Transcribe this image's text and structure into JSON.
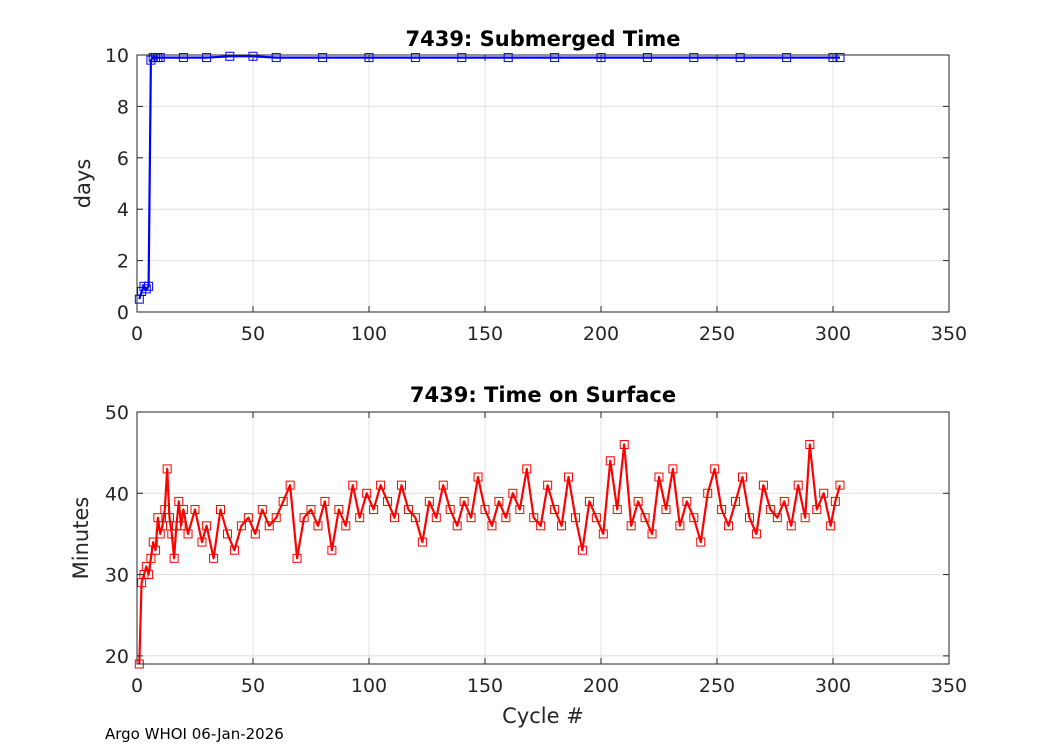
{
  "chart_data": [
    {
      "type": "line",
      "title": "7439: Submerged Time",
      "xlabel": "",
      "ylabel": "days",
      "xlim": [
        0,
        350
      ],
      "ylim": [
        0,
        10
      ],
      "xticks": [
        0,
        50,
        100,
        150,
        200,
        250,
        300,
        350
      ],
      "yticks": [
        0,
        2,
        4,
        6,
        8,
        10
      ],
      "grid": true,
      "color": "#0000ff",
      "marker": "square",
      "series": [
        {
          "name": "Submerged Time",
          "x": [
            1,
            2,
            3,
            4,
            5,
            6,
            7,
            8,
            9,
            10,
            20,
            30,
            40,
            50,
            60,
            80,
            100,
            120,
            140,
            160,
            180,
            200,
            220,
            240,
            260,
            280,
            300,
            303
          ],
          "y": [
            0.5,
            0.8,
            1.0,
            0.9,
            1.0,
            9.8,
            9.9,
            9.9,
            9.9,
            9.9,
            9.9,
            9.9,
            9.95,
            9.95,
            9.9,
            9.9,
            9.9,
            9.9,
            9.9,
            9.9,
            9.9,
            9.9,
            9.9,
            9.9,
            9.9,
            9.9,
            9.9,
            9.9
          ]
        }
      ]
    },
    {
      "type": "line",
      "title": "7439: Time on Surface",
      "xlabel": "Cycle #",
      "ylabel": "Minutes",
      "xlim": [
        0,
        350
      ],
      "ylim": [
        19,
        50
      ],
      "xticks": [
        0,
        50,
        100,
        150,
        200,
        250,
        300,
        350
      ],
      "yticks": [
        20,
        30,
        40,
        50
      ],
      "grid": true,
      "color": "#ff0000",
      "marker": "square",
      "series": [
        {
          "name": "Time on Surface",
          "x": [
            1,
            2,
            3,
            4,
            5,
            6,
            7,
            8,
            9,
            10,
            11,
            12,
            13,
            14,
            15,
            16,
            17,
            18,
            19,
            20,
            22,
            25,
            28,
            30,
            33,
            36,
            39,
            42,
            45,
            48,
            51,
            54,
            57,
            60,
            63,
            66,
            69,
            72,
            75,
            78,
            81,
            84,
            87,
            90,
            93,
            96,
            99,
            102,
            105,
            108,
            111,
            114,
            117,
            120,
            123,
            126,
            129,
            132,
            135,
            138,
            141,
            144,
            147,
            150,
            153,
            156,
            159,
            162,
            165,
            168,
            171,
            174,
            177,
            180,
            183,
            186,
            189,
            192,
            195,
            198,
            201,
            204,
            207,
            210,
            213,
            216,
            219,
            222,
            225,
            228,
            231,
            234,
            237,
            240,
            243,
            246,
            249,
            252,
            255,
            258,
            261,
            264,
            267,
            270,
            273,
            276,
            279,
            282,
            285,
            288,
            290,
            293,
            296,
            299,
            301,
            303
          ],
          "y": [
            19,
            29,
            30,
            31,
            30,
            32,
            34,
            33,
            37,
            35,
            36,
            38,
            43,
            37,
            35,
            32,
            36,
            39,
            36,
            38,
            35,
            38,
            34,
            36,
            32,
            38,
            35,
            33,
            36,
            37,
            35,
            38,
            36,
            37,
            39,
            41,
            32,
            37,
            38,
            36,
            39,
            33,
            38,
            36,
            41,
            37,
            40,
            38,
            41,
            39,
            37,
            41,
            38,
            37,
            34,
            39,
            37,
            41,
            38,
            36,
            39,
            37,
            42,
            38,
            36,
            39,
            37,
            40,
            38,
            43,
            37,
            36,
            41,
            38,
            36,
            42,
            37,
            33,
            39,
            37,
            35,
            44,
            38,
            46,
            36,
            39,
            37,
            35,
            42,
            38,
            43,
            36,
            39,
            37,
            34,
            40,
            43,
            38,
            36,
            39,
            42,
            37,
            35,
            41,
            38,
            37,
            39,
            36,
            41,
            37,
            46,
            38,
            40,
            36,
            39,
            41
          ]
        }
      ]
    }
  ],
  "footer": "Argo WHOI 06-Jan-2026"
}
